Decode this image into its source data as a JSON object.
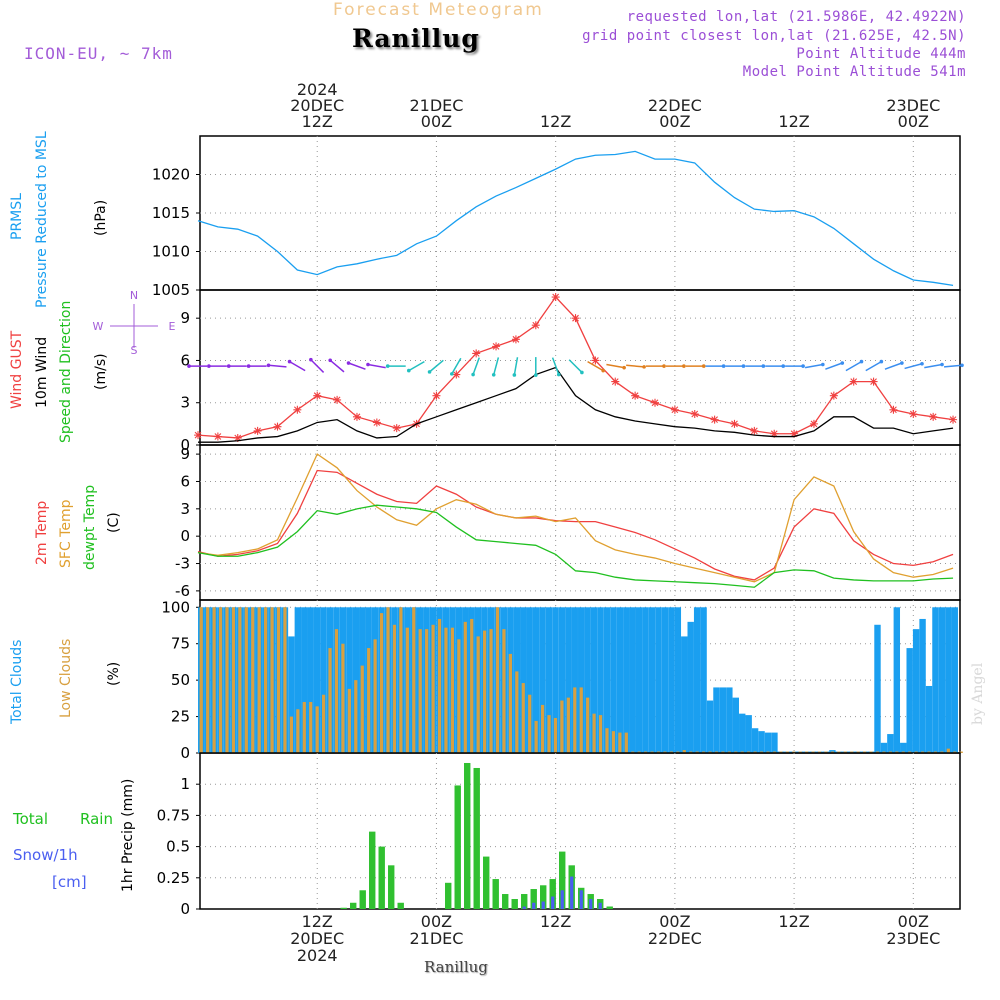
{
  "header": {
    "subtitle": "Forecast Meteogram",
    "location": "Ranillug",
    "model": "ICON-EU, ~ 7km",
    "requested": "requested lon,lat (21.5986E, 42.4922N)",
    "gridpoint": "grid point closest lon,lat (21.625E, 42.5N)",
    "point_alt": "Point Altitude 444m",
    "model_alt": "Model Point Altitude 541m",
    "credit": "by Angel",
    "footer": "Ranillug"
  },
  "colors": {
    "pressure": "#1a9ff0",
    "gust": "#f04040",
    "wind": "#000000",
    "temp2m": "#f04040",
    "sfc": "#e0a030",
    "dewpt": "#20c020",
    "total_clouds": "#1a9ff0",
    "low_clouds": "#d8a040",
    "rain": "#30c030",
    "snow": "#4a5ef0",
    "axis": "#000000",
    "purple": "#a35cd8"
  },
  "time_axis": {
    "top_labels": [
      {
        "t": 12,
        "lines": [
          "2024",
          "20DEC",
          "12Z"
        ]
      },
      {
        "t": 24,
        "lines": [
          "21DEC",
          "00Z"
        ]
      },
      {
        "t": 36,
        "lines": [
          "12Z"
        ]
      },
      {
        "t": 48,
        "lines": [
          "22DEC",
          "00Z"
        ]
      },
      {
        "t": 60,
        "lines": [
          "12Z"
        ]
      },
      {
        "t": 72,
        "lines": [
          "23DEC",
          "00Z"
        ]
      }
    ],
    "bottom_labels": [
      {
        "t": 12,
        "lines": [
          "12Z",
          "20DEC",
          "2024"
        ]
      },
      {
        "t": 24,
        "lines": [
          "00Z",
          "21DEC"
        ]
      },
      {
        "t": 36,
        "lines": [
          "12Z"
        ]
      },
      {
        "t": 48,
        "lines": [
          "00Z",
          "22DEC"
        ]
      },
      {
        "t": 60,
        "lines": [
          "12Z"
        ]
      },
      {
        "t": 72,
        "lines": [
          "00Z",
          "23DEC"
        ]
      }
    ]
  },
  "panel_labels": {
    "pressure": {
      "title": "PRMSL",
      "sub": "Pressure Reduced to MSL",
      "unit": "(hPa)"
    },
    "wind": {
      "gust": "Wind GUST",
      "wind": "10m Wind",
      "dir": "Speed and Direction",
      "unit": "(m/s)",
      "compass": {
        "N": "N",
        "S": "S",
        "W": "W",
        "E": "E"
      }
    },
    "temp": {
      "t2m": "2m Temp",
      "sfc": "SFC Temp",
      "dew": "dewpt Temp",
      "unit": "(C)"
    },
    "clouds": {
      "total": "Total Clouds",
      "low": "Low Clouds",
      "unit": "(%)"
    },
    "precip": {
      "total": "Total",
      "rain": "Rain",
      "snow": "Snow/1h",
      "cm": "[cm]",
      "unit": "1hr Precip (mm)"
    }
  },
  "chart_data": [
    {
      "type": "line",
      "name": "pressure",
      "ylim": [
        1005,
        1025
      ],
      "yticks": [
        1005,
        1010,
        1015,
        1020
      ],
      "x": [
        0,
        2,
        4,
        6,
        8,
        10,
        12,
        14,
        16,
        18,
        20,
        22,
        24,
        26,
        28,
        30,
        32,
        34,
        36,
        38,
        40,
        42,
        44,
        46,
        48,
        50,
        52,
        54,
        56,
        58,
        60,
        62,
        64,
        66,
        68,
        70,
        72,
        74,
        76
      ],
      "series": [
        {
          "key": "prmsl",
          "color_key": "pressure",
          "values": [
            1014.0,
            1013.2,
            1012.9,
            1012.0,
            1010.0,
            1007.6,
            1007.0,
            1008.0,
            1008.4,
            1009.0,
            1009.5,
            1011.0,
            1012.0,
            1014.0,
            1015.8,
            1017.2,
            1018.3,
            1019.5,
            1020.7,
            1022.0,
            1022.5,
            1022.6,
            1023.0,
            1022.0,
            1022.0,
            1021.5,
            1019.0,
            1017.0,
            1015.5,
            1015.2,
            1015.3,
            1014.5,
            1013.0,
            1011.0,
            1009.0,
            1007.5,
            1006.3,
            1006.0,
            1005.6
          ]
        }
      ]
    },
    {
      "type": "line",
      "name": "wind",
      "ylim": [
        0,
        11
      ],
      "yticks": [
        0,
        3,
        6,
        9
      ],
      "x": [
        0,
        2,
        4,
        6,
        8,
        10,
        12,
        14,
        16,
        18,
        20,
        22,
        24,
        26,
        28,
        30,
        32,
        34,
        36,
        38,
        40,
        42,
        44,
        46,
        48,
        50,
        52,
        54,
        56,
        58,
        60,
        62,
        64,
        66,
        68,
        70,
        72,
        74,
        76
      ],
      "series": [
        {
          "key": "gust",
          "color_key": "gust",
          "marker": "star",
          "values": [
            0.7,
            0.6,
            0.5,
            1.0,
            1.3,
            2.5,
            3.5,
            3.2,
            2.0,
            1.6,
            1.2,
            1.5,
            3.5,
            5.0,
            6.5,
            7.0,
            7.5,
            8.5,
            10.5,
            9.0,
            6.0,
            4.5,
            3.5,
            3.0,
            2.5,
            2.2,
            1.8,
            1.5,
            1.0,
            0.8,
            0.8,
            1.5,
            3.5,
            4.5,
            4.5,
            2.5,
            2.2,
            2.0,
            1.8
          ]
        },
        {
          "key": "wind10m",
          "color_key": "wind",
          "values": [
            0.2,
            0.2,
            0.3,
            0.5,
            0.6,
            1.0,
            1.6,
            1.8,
            1.0,
            0.5,
            0.6,
            1.5,
            2.0,
            2.5,
            3.0,
            3.5,
            4.0,
            5.0,
            5.5,
            3.5,
            2.5,
            2.0,
            1.7,
            1.5,
            1.3,
            1.2,
            1.0,
            0.9,
            0.7,
            0.6,
            0.6,
            1.0,
            2.0,
            2.0,
            1.2,
            1.2,
            0.8,
            1.0,
            1.2
          ]
        },
        {
          "key": "direction",
          "color_key": "wind",
          "marker": "arrow",
          "level": 5.6,
          "values": [
            270,
            270,
            270,
            270,
            275,
            300,
            315,
            310,
            290,
            280,
            270,
            240,
            230,
            210,
            200,
            195,
            190,
            180,
            160,
            135,
            120,
            100,
            95,
            90,
            90,
            90,
            90,
            90,
            90,
            90,
            90,
            80,
            70,
            60,
            60,
            70,
            75,
            80,
            85
          ]
        }
      ]
    },
    {
      "type": "line",
      "name": "temperature",
      "ylim": [
        -7,
        10
      ],
      "yticks": [
        -6,
        -3,
        0,
        3,
        6,
        9
      ],
      "x": [
        0,
        2,
        4,
        6,
        8,
        10,
        12,
        14,
        16,
        18,
        20,
        22,
        24,
        26,
        28,
        30,
        32,
        34,
        36,
        38,
        40,
        42,
        44,
        46,
        48,
        50,
        52,
        54,
        56,
        58,
        60,
        62,
        64,
        66,
        68,
        70,
        72,
        74,
        76
      ],
      "series": [
        {
          "key": "t2m",
          "color_key": "temp2m",
          "values": [
            -1.7,
            -2.2,
            -2.0,
            -1.6,
            -0.8,
            2.5,
            7.2,
            7.0,
            5.8,
            4.6,
            3.8,
            3.6,
            5.5,
            4.6,
            3.2,
            2.4,
            2.0,
            2.0,
            1.7,
            1.6,
            1.6,
            1.0,
            0.4,
            -0.4,
            -1.4,
            -2.4,
            -3.6,
            -4.4,
            -4.8,
            -3.5,
            1.0,
            3.0,
            2.5,
            -0.5,
            -2.0,
            -3.0,
            -3.2,
            -2.8,
            -2.0
          ]
        },
        {
          "key": "sfc",
          "color_key": "sfc",
          "values": [
            -1.8,
            -2.1,
            -1.8,
            -1.4,
            -0.4,
            4.2,
            9.0,
            7.5,
            5.0,
            3.2,
            1.8,
            1.2,
            3.0,
            4.0,
            3.5,
            2.4,
            2.0,
            2.2,
            1.6,
            2.0,
            -0.5,
            -1.5,
            -2.0,
            -2.4,
            -3.0,
            -3.5,
            -4.0,
            -4.5,
            -5.0,
            -4.0,
            4.0,
            6.5,
            5.5,
            0.5,
            -2.5,
            -4.0,
            -4.5,
            -4.2,
            -3.5
          ]
        },
        {
          "key": "dewpt",
          "color_key": "dewpt",
          "values": [
            -1.8,
            -2.2,
            -2.2,
            -1.8,
            -1.2,
            0.5,
            2.8,
            2.4,
            3.0,
            3.4,
            3.2,
            3.0,
            2.6,
            1.0,
            -0.4,
            -0.6,
            -0.8,
            -1.0,
            -2.0,
            -3.8,
            -4.0,
            -4.5,
            -4.8,
            -4.9,
            -5.0,
            -5.1,
            -5.2,
            -5.4,
            -5.6,
            -4.0,
            -3.7,
            -3.8,
            -4.6,
            -4.8,
            -4.9,
            -4.9,
            -4.9,
            -4.7,
            -4.6
          ]
        }
      ]
    },
    {
      "type": "bar",
      "name": "clouds",
      "ylim": [
        0,
        105
      ],
      "yticks": [
        0,
        25,
        50,
        75,
        100
      ],
      "t_start": 0,
      "series": [
        {
          "key": "total",
          "color_key": "total_clouds",
          "values": [
            100,
            100,
            100,
            100,
            100,
            100,
            100,
            100,
            100,
            100,
            100,
            100,
            100,
            100,
            80,
            100,
            100,
            100,
            100,
            100,
            100,
            100,
            100,
            100,
            100,
            100,
            100,
            100,
            100,
            100,
            100,
            100,
            100,
            100,
            100,
            100,
            100,
            100,
            100,
            100,
            100,
            100,
            100,
            100,
            100,
            100,
            100,
            100,
            100,
            100,
            100,
            100,
            100,
            100,
            100,
            100,
            100,
            100,
            100,
            100,
            100,
            100,
            100,
            100,
            100,
            100,
            100,
            100,
            100,
            100,
            100,
            100,
            100,
            100,
            100,
            80,
            90,
            100,
            100,
            36,
            45,
            45,
            45,
            38,
            27,
            26,
            17,
            15,
            14,
            14,
            1,
            1,
            1,
            1,
            1,
            1,
            1,
            1,
            2,
            1,
            1,
            1,
            1,
            1,
            1,
            88,
            7,
            13,
            100,
            7,
            72,
            85,
            92,
            46,
            100,
            100,
            100,
            100
          ]
        },
        {
          "key": "low",
          "color_key": "low_clouds",
          "values": [
            100,
            100,
            100,
            100,
            100,
            100,
            100,
            100,
            100,
            100,
            100,
            100,
            100,
            100,
            25,
            30,
            35,
            35,
            32,
            40,
            72,
            85,
            75,
            44,
            50,
            60,
            72,
            78,
            96,
            100,
            88,
            100,
            86,
            100,
            85,
            85,
            88,
            92,
            86,
            86,
            78,
            90,
            92,
            80,
            84,
            85,
            100,
            85,
            68,
            56,
            48,
            40,
            22,
            33,
            26,
            24,
            36,
            38,
            45,
            45,
            38,
            27,
            26,
            17,
            15,
            14,
            14,
            1,
            1,
            1,
            1,
            1,
            1,
            1,
            1,
            2,
            1,
            1,
            1,
            1,
            1,
            1,
            1,
            1,
            1,
            1,
            1,
            1,
            1,
            1,
            1,
            1,
            1,
            1,
            1,
            1,
            1,
            1,
            1,
            1,
            1,
            1,
            1,
            1,
            1,
            1,
            1,
            1,
            1,
            1,
            1,
            1,
            1,
            1,
            1,
            1,
            3,
            1,
            1
          ]
        }
      ]
    },
    {
      "type": "bar",
      "name": "precip",
      "ylim": [
        0,
        1.25
      ],
      "yticks": [
        0,
        0.25,
        0.5,
        0.75,
        1
      ],
      "t_start": 0,
      "series": [
        {
          "key": "rain",
          "color_key": "rain",
          "values": [
            0,
            0,
            0,
            0,
            0,
            0,
            0,
            0,
            0,
            0,
            0,
            0,
            0,
            0,
            0,
            0.01,
            0.05,
            0.15,
            0.62,
            0.5,
            0.35,
            0.05,
            0,
            0,
            0,
            0,
            0.21,
            0.99,
            1.17,
            1.13,
            0.42,
            0.24,
            0.12,
            0.08,
            0.12,
            0.16,
            0.19,
            0.24,
            0.46,
            0.35,
            0.17,
            0.12,
            0.08,
            0.02,
            0,
            0,
            0,
            0,
            0,
            0,
            0,
            0,
            0,
            0,
            0,
            0,
            0,
            0,
            0,
            0,
            0,
            0,
            0,
            0,
            0,
            0,
            0,
            0,
            0,
            0,
            0,
            0,
            0,
            0,
            0,
            0,
            0,
            0,
            0,
            0
          ]
        },
        {
          "key": "snow",
          "color_key": "snow",
          "values": [
            0,
            0,
            0,
            0,
            0,
            0,
            0,
            0,
            0,
            0,
            0,
            0,
            0,
            0,
            0,
            0,
            0,
            0,
            0,
            0,
            0,
            0,
            0,
            0,
            0,
            0,
            0,
            0,
            0,
            0,
            0,
            0,
            0,
            0,
            0.02,
            0.05,
            0.06,
            0.1,
            0.15,
            0.26,
            0.15,
            0.08,
            0.05,
            0,
            0,
            0,
            0,
            0,
            0,
            0,
            0,
            0,
            0,
            0,
            0,
            0,
            0,
            0,
            0,
            0,
            0,
            0,
            0,
            0,
            0,
            0,
            0,
            0,
            0,
            0,
            0,
            0,
            0,
            0,
            0,
            0,
            0,
            0,
            0,
            0
          ]
        }
      ]
    }
  ]
}
